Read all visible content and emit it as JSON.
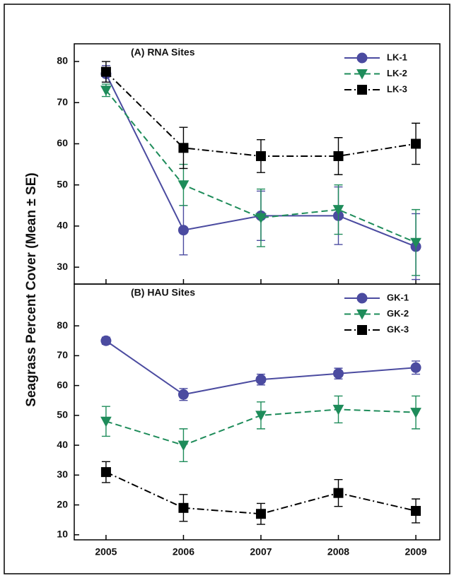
{
  "y_label": "Seagrass Percent Cover (Mean ± SE)",
  "chart_data": [
    {
      "type": "line",
      "title": "(A) RNA Sites",
      "x": [
        2005,
        2006,
        2007,
        2008,
        2009
      ],
      "xlim": [
        2004.59,
        2009.31
      ],
      "xticks": [
        2005,
        2006,
        2007,
        2008,
        2009
      ],
      "ylim": [
        25.9,
        84.3
      ],
      "yticks": [
        30,
        40,
        50,
        60,
        70,
        80
      ],
      "legend": "upper right",
      "series": [
        {
          "name": "LK-1",
          "color": "#4b4ba0",
          "marker": "circle",
          "dash": "solid",
          "values": [
            77,
            39,
            42.5,
            42.5,
            35
          ],
          "errors": [
            2,
            6,
            6,
            7,
            8
          ]
        },
        {
          "name": "LK-2",
          "color": "#1e8c5a",
          "marker": "triangle-down",
          "dash": "dashed",
          "values": [
            73,
            50,
            42,
            44,
            36
          ],
          "errors": [
            1.5,
            5,
            7,
            6,
            8
          ]
        },
        {
          "name": "LK-3",
          "color": "#000000",
          "marker": "square",
          "dash": "dash-dot",
          "values": [
            77.5,
            59,
            57,
            57,
            60
          ],
          "errors": [
            2.5,
            5,
            4,
            4.5,
            5
          ]
        }
      ]
    },
    {
      "type": "line",
      "title": "(B) HAU Sites",
      "x": [
        2005,
        2006,
        2007,
        2008,
        2009
      ],
      "xlim": [
        2004.59,
        2009.31
      ],
      "xticks": [
        2005,
        2006,
        2007,
        2008,
        2009
      ],
      "ylim": [
        8.3,
        94
      ],
      "yticks": [
        10,
        20,
        30,
        40,
        50,
        60,
        70,
        80
      ],
      "legend": "upper right",
      "series": [
        {
          "name": "GK-1",
          "color": "#4b4ba0",
          "marker": "circle",
          "dash": "solid",
          "values": [
            75,
            57,
            62,
            64,
            66
          ],
          "errors": [
            1.2,
            2,
            1.8,
            1.8,
            2.2
          ]
        },
        {
          "name": "GK-2",
          "color": "#1e8c5a",
          "marker": "triangle-down",
          "dash": "dashed",
          "values": [
            48,
            40,
            50,
            52,
            51
          ],
          "errors": [
            5,
            5.5,
            4.5,
            4.5,
            5.5
          ]
        },
        {
          "name": "GK-3",
          "color": "#000000",
          "marker": "square",
          "dash": "dash-dot",
          "values": [
            31,
            19,
            17,
            24,
            18
          ],
          "errors": [
            3.5,
            4.5,
            3.5,
            4.5,
            4
          ]
        }
      ]
    }
  ]
}
